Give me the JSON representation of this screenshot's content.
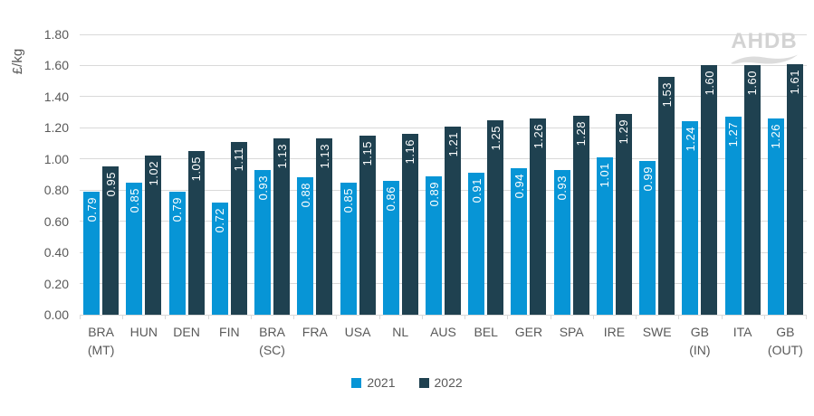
{
  "watermark": "AHDB",
  "colors": {
    "grid": "#d9d9d9",
    "axis_text": "#595959",
    "bar_label_text": "#ffffff",
    "watermark": "#d3d3d3",
    "background": "#ffffff",
    "series_2021": "#0795d6",
    "series_2022": "#1f4150"
  },
  "chart_data": {
    "type": "bar",
    "title": "",
    "xlabel": "",
    "ylabel": "£/kg",
    "ylim": [
      0,
      1.8
    ],
    "ytick_step": 0.2,
    "yticks": [
      "0.00",
      "0.20",
      "0.40",
      "0.60",
      "0.80",
      "1.00",
      "1.20",
      "1.40",
      "1.60",
      "1.80"
    ],
    "grid": true,
    "legend_position": "bottom",
    "value_labels": "inside-end-rotated-white",
    "categories": [
      "BRA\n(MT)",
      "HUN",
      "DEN",
      "FIN",
      "BRA\n(SC)",
      "FRA",
      "USA",
      "NL",
      "AUS",
      "BEL",
      "GER",
      "SPA",
      "IRE",
      "SWE",
      "GB\n(IN)",
      "ITA",
      "GB\n(OUT)"
    ],
    "series": [
      {
        "name": "2021",
        "color": "#0795d6",
        "values": [
          0.79,
          0.85,
          0.79,
          0.72,
          0.93,
          0.88,
          0.85,
          0.86,
          0.89,
          0.91,
          0.94,
          0.93,
          1.01,
          0.99,
          1.24,
          1.27,
          1.26
        ]
      },
      {
        "name": "2022",
        "color": "#1f4150",
        "values": [
          0.95,
          1.02,
          1.05,
          1.11,
          1.13,
          1.13,
          1.15,
          1.16,
          1.21,
          1.25,
          1.26,
          1.28,
          1.29,
          1.53,
          1.6,
          1.6,
          1.61
        ]
      }
    ]
  }
}
